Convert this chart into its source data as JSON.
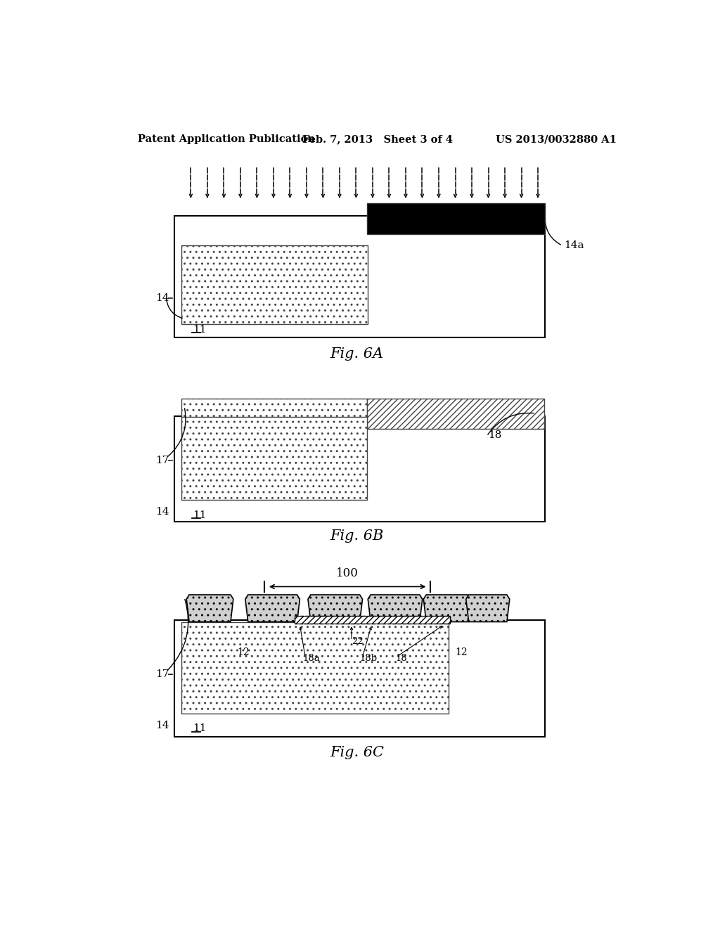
{
  "header_left": "Patent Application Publication",
  "header_mid": "Feb. 7, 2013   Sheet 3 of 4",
  "header_right": "US 2013/0032880 A1",
  "fig6a_label": "Fig. 6A",
  "fig6b_label": "Fig. 6B",
  "fig6c_label": "Fig. 6C",
  "bg_color": "#ffffff"
}
